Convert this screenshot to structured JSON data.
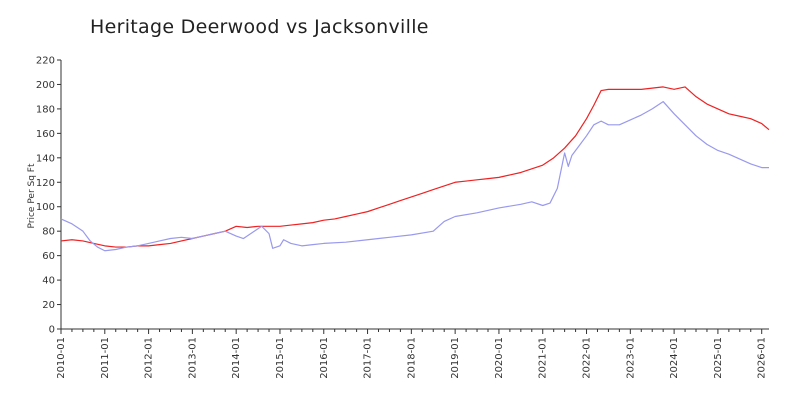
{
  "chart_data": {
    "type": "line",
    "title": "Heritage Deerwood vs Jacksonville",
    "ylabel": "Price Per Sq Ft",
    "xlabel": "",
    "ylim": [
      0,
      220
    ],
    "yticks": [
      0,
      20,
      40,
      60,
      80,
      100,
      120,
      140,
      160,
      180,
      200,
      220
    ],
    "xlim": [
      "2010-01",
      "2026-03"
    ],
    "xtick_labels": [
      "2010-01",
      "2011-01",
      "2012-01",
      "2013-01",
      "2014-01",
      "2015-01",
      "2016-01",
      "2017-01",
      "2018-01",
      "2019-01",
      "2020-01",
      "2021-01",
      "2022-01",
      "2023-01",
      "2024-01",
      "2025-01",
      "2026-01"
    ],
    "grid": false,
    "legend": "none",
    "series": [
      {
        "color": "#ee2222",
        "points": [
          [
            "2010-01",
            72
          ],
          [
            "2010-04",
            73
          ],
          [
            "2010-07",
            72
          ],
          [
            "2010-10",
            70
          ],
          [
            "2011-01",
            68
          ],
          [
            "2011-04",
            67
          ],
          [
            "2011-07",
            67
          ],
          [
            "2011-10",
            68
          ],
          [
            "2012-01",
            68
          ],
          [
            "2012-04",
            69
          ],
          [
            "2012-07",
            70
          ],
          [
            "2012-10",
            72
          ],
          [
            "2013-01",
            74
          ],
          [
            "2013-04",
            76
          ],
          [
            "2013-07",
            78
          ],
          [
            "2013-10",
            80
          ],
          [
            "2014-01",
            84
          ],
          [
            "2014-04",
            83
          ],
          [
            "2014-07",
            84
          ],
          [
            "2014-10",
            84
          ],
          [
            "2015-01",
            84
          ],
          [
            "2015-04",
            85
          ],
          [
            "2015-07",
            86
          ],
          [
            "2015-10",
            87
          ],
          [
            "2016-01",
            89
          ],
          [
            "2016-04",
            90
          ],
          [
            "2016-07",
            92
          ],
          [
            "2016-10",
            94
          ],
          [
            "2017-01",
            96
          ],
          [
            "2017-04",
            99
          ],
          [
            "2017-07",
            102
          ],
          [
            "2017-10",
            105
          ],
          [
            "2018-01",
            108
          ],
          [
            "2018-04",
            111
          ],
          [
            "2018-07",
            114
          ],
          [
            "2018-10",
            117
          ],
          [
            "2019-01",
            120
          ],
          [
            "2019-04",
            121
          ],
          [
            "2019-07",
            122
          ],
          [
            "2019-10",
            123
          ],
          [
            "2020-01",
            124
          ],
          [
            "2020-04",
            126
          ],
          [
            "2020-07",
            128
          ],
          [
            "2020-10",
            131
          ],
          [
            "2021-01",
            134
          ],
          [
            "2021-04",
            140
          ],
          [
            "2021-07",
            148
          ],
          [
            "2021-10",
            158
          ],
          [
            "2022-01",
            172
          ],
          [
            "2022-03",
            183
          ],
          [
            "2022-05",
            195
          ],
          [
            "2022-07",
            196
          ],
          [
            "2022-10",
            196
          ],
          [
            "2023-01",
            196
          ],
          [
            "2023-04",
            196
          ],
          [
            "2023-07",
            197
          ],
          [
            "2023-10",
            198
          ],
          [
            "2024-01",
            196
          ],
          [
            "2024-04",
            198
          ],
          [
            "2024-07",
            190
          ],
          [
            "2024-10",
            184
          ],
          [
            "2025-01",
            180
          ],
          [
            "2025-04",
            176
          ],
          [
            "2025-07",
            174
          ],
          [
            "2025-10",
            172
          ],
          [
            "2026-01",
            168
          ],
          [
            "2026-03",
            163
          ]
        ]
      },
      {
        "color": "#9999ee",
        "points": [
          [
            "2010-01",
            90
          ],
          [
            "2010-04",
            86
          ],
          [
            "2010-07",
            80
          ],
          [
            "2010-09",
            72
          ],
          [
            "2010-11",
            67
          ],
          [
            "2011-01",
            64
          ],
          [
            "2011-04",
            65
          ],
          [
            "2011-07",
            67
          ],
          [
            "2011-10",
            68
          ],
          [
            "2012-01",
            70
          ],
          [
            "2012-04",
            72
          ],
          [
            "2012-07",
            74
          ],
          [
            "2012-10",
            75
          ],
          [
            "2013-01",
            74
          ],
          [
            "2013-04",
            76
          ],
          [
            "2013-07",
            78
          ],
          [
            "2013-10",
            80
          ],
          [
            "2014-01",
            76
          ],
          [
            "2014-03",
            74
          ],
          [
            "2014-06",
            80
          ],
          [
            "2014-08",
            84
          ],
          [
            "2014-10",
            78
          ],
          [
            "2014-11",
            66
          ],
          [
            "2015-01",
            68
          ],
          [
            "2015-02",
            73
          ],
          [
            "2015-04",
            70
          ],
          [
            "2015-07",
            68
          ],
          [
            "2015-10",
            69
          ],
          [
            "2016-01",
            70
          ],
          [
            "2016-07",
            71
          ],
          [
            "2017-01",
            73
          ],
          [
            "2017-07",
            75
          ],
          [
            "2018-01",
            77
          ],
          [
            "2018-07",
            80
          ],
          [
            "2018-10",
            88
          ],
          [
            "2019-01",
            92
          ],
          [
            "2019-07",
            95
          ],
          [
            "2020-01",
            99
          ],
          [
            "2020-07",
            102
          ],
          [
            "2020-10",
            104
          ],
          [
            "2021-01",
            101
          ],
          [
            "2021-03",
            103
          ],
          [
            "2021-05",
            115
          ],
          [
            "2021-07",
            144
          ],
          [
            "2021-08",
            133
          ],
          [
            "2021-09",
            142
          ],
          [
            "2021-11",
            150
          ],
          [
            "2022-01",
            158
          ],
          [
            "2022-03",
            167
          ],
          [
            "2022-05",
            170
          ],
          [
            "2022-07",
            167
          ],
          [
            "2022-10",
            167
          ],
          [
            "2023-01",
            171
          ],
          [
            "2023-04",
            175
          ],
          [
            "2023-07",
            180
          ],
          [
            "2023-10",
            186
          ],
          [
            "2024-01",
            176
          ],
          [
            "2024-04",
            167
          ],
          [
            "2024-07",
            158
          ],
          [
            "2024-10",
            151
          ],
          [
            "2025-01",
            146
          ],
          [
            "2025-04",
            143
          ],
          [
            "2025-07",
            139
          ],
          [
            "2025-10",
            135
          ],
          [
            "2026-01",
            132
          ],
          [
            "2026-03",
            132
          ]
        ]
      }
    ]
  }
}
